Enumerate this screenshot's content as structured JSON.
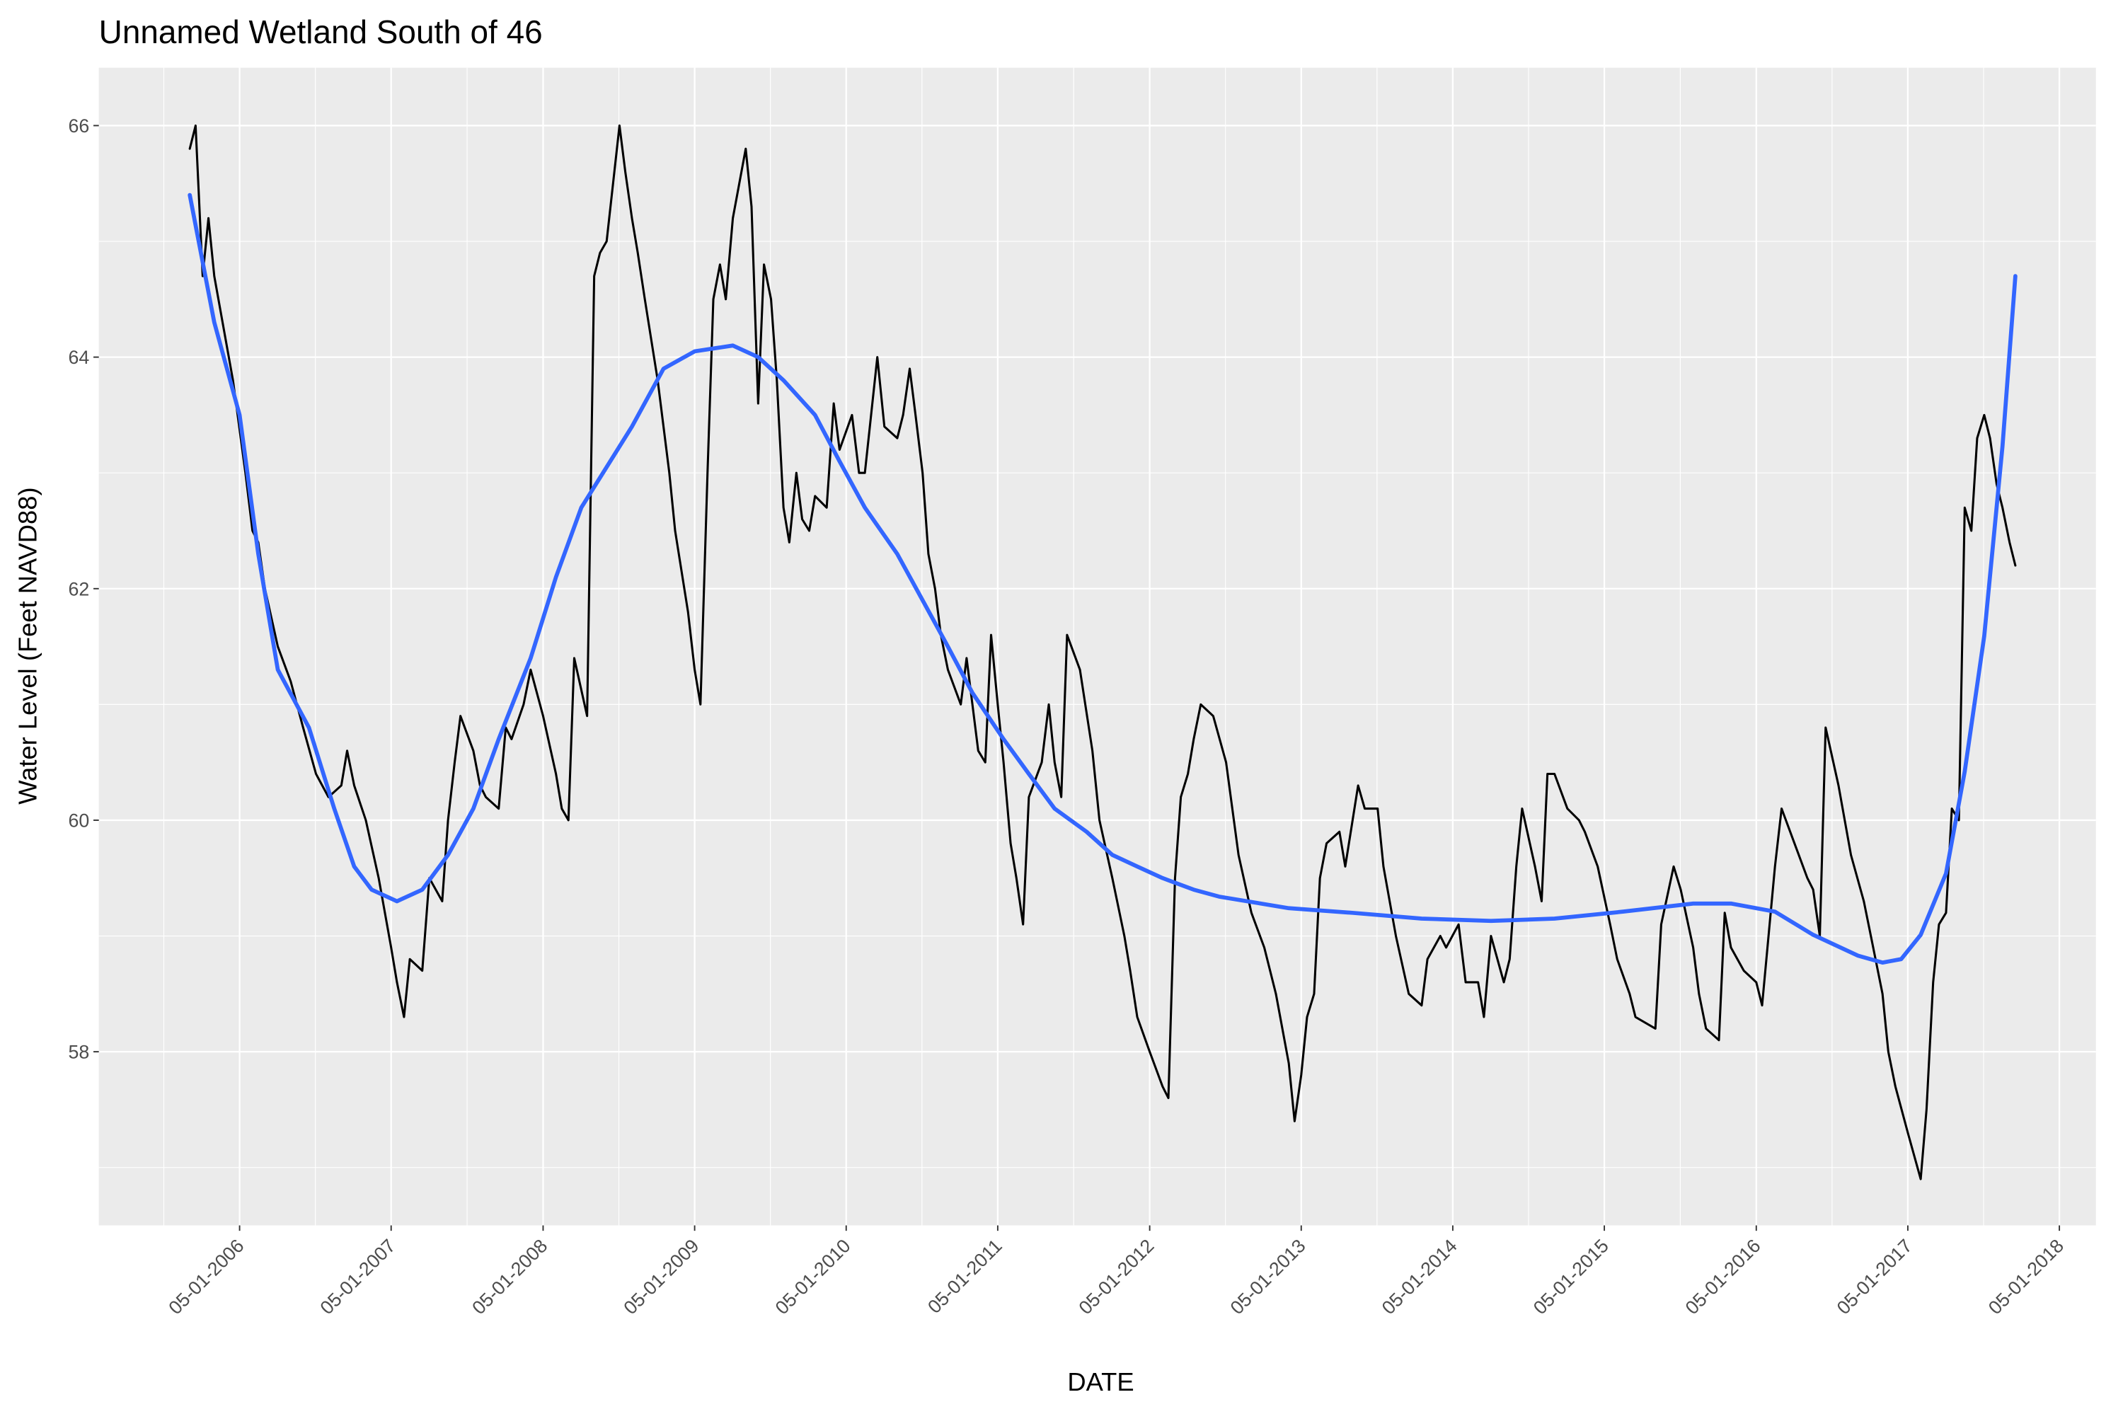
{
  "chart_data": {
    "type": "line",
    "title": "Unnamed Wetland South of 46",
    "x_label": "DATE",
    "y_label": "Water Level (Feet NAVD88)",
    "xlim": [
      "05-27-2005",
      "07-28-2018"
    ],
    "ylim": [
      56.5,
      66.5
    ],
    "xticks": [
      "05-01-2006",
      "05-01-2007",
      "05-01-2008",
      "05-01-2009",
      "05-01-2010",
      "05-01-2011",
      "05-01-2012",
      "05-01-2013",
      "05-01-2014",
      "05-01-2015",
      "05-01-2016",
      "05-01-2017",
      "05-01-2018"
    ],
    "yticks": [
      58,
      60,
      62,
      64,
      66
    ],
    "grid": true,
    "series": [
      {
        "color": "#000000",
        "x": [
          "01-01-2006",
          "01-15-2006",
          "02-01-2006",
          "02-15-2006",
          "03-01-2006",
          "04-15-2006",
          "05-15-2006",
          "06-01-2006",
          "06-15-2006",
          "07-01-2006",
          "08-01-2006",
          "09-01-2006",
          "10-01-2006",
          "11-01-2006",
          "12-01-2006",
          "01-01-2007",
          "01-15-2007",
          "02-01-2007",
          "03-01-2007",
          "04-01-2007",
          "05-01-2007",
          "05-15-2007",
          "06-01-2007",
          "06-15-2007",
          "07-15-2007",
          "08-01-2007",
          "09-01-2007",
          "09-15-2007",
          "10-01-2007",
          "10-15-2007",
          "11-15-2007",
          "12-01-2007",
          "12-15-2007",
          "01-15-2008",
          "02-01-2008",
          "02-15-2008",
          "03-15-2008",
          "04-01-2008",
          "05-01-2008",
          "06-01-2008",
          "06-15-2008",
          "07-01-2008",
          "07-15-2008",
          "08-15-2008",
          "09-01-2008",
          "09-15-2008",
          "10-01-2008",
          "11-01-2008",
          "11-15-2008",
          "12-01-2008",
          "12-15-2008",
          "01-01-2009",
          "02-01-2009",
          "03-01-2009",
          "03-15-2009",
          "04-15-2009",
          "05-01-2009",
          "05-15-2009",
          "06-01-2009",
          "06-15-2009",
          "07-01-2009",
          "07-15-2009",
          "08-01-2009",
          "09-01-2009",
          "09-15-2009",
          "10-01-2009",
          "10-15-2009",
          "11-01-2009",
          "11-15-2009",
          "12-01-2009",
          "12-15-2009",
          "01-01-2010",
          "01-15-2010",
          "02-01-2010",
          "02-15-2010",
          "03-15-2010",
          "04-01-2010",
          "04-15-2010",
          "05-15-2010",
          "06-01-2010",
          "06-15-2010",
          "07-15-2010",
          "08-01-2010",
          "09-01-2010",
          "09-15-2010",
          "10-01-2010",
          "10-15-2010",
          "11-01-2010",
          "11-15-2010",
          "12-01-2010",
          "12-15-2010",
          "01-01-2011",
          "02-01-2011",
          "02-15-2011",
          "03-01-2011",
          "03-15-2011",
          "04-01-2011",
          "04-15-2011",
          "05-01-2011",
          "05-15-2011",
          "06-01-2011",
          "06-15-2011",
          "07-01-2011",
          "07-15-2011",
          "08-15-2011",
          "09-01-2011",
          "09-15-2011",
          "10-01-2011",
          "10-15-2011",
          "11-15-2011",
          "12-15-2011",
          "01-01-2012",
          "02-01-2012",
          "03-01-2012",
          "03-15-2012",
          "04-01-2012",
          "05-01-2012",
          "06-01-2012",
          "06-15-2012",
          "07-01-2012",
          "07-15-2012",
          "08-01-2012",
          "08-15-2012",
          "09-01-2012",
          "10-01-2012",
          "11-01-2012",
          "12-01-2012",
          "01-01-2013",
          "02-01-2013",
          "03-01-2013",
          "04-01-2013",
          "04-15-2013",
          "05-01-2013",
          "05-15-2013",
          "06-01-2013",
          "06-15-2013",
          "07-01-2013",
          "08-01-2013",
          "08-15-2013",
          "09-15-2013",
          "10-01-2013",
          "11-01-2013",
          "11-15-2013",
          "12-15-2013",
          "01-15-2014",
          "02-15-2014",
          "03-01-2014",
          "04-01-2014",
          "04-15-2014",
          "05-15-2014",
          "06-01-2014",
          "07-01-2014",
          "07-15-2014",
          "08-01-2014",
          "09-01-2014",
          "09-15-2014",
          "10-01-2014",
          "10-15-2014",
          "11-15-2014",
          "12-01-2014",
          "12-15-2014",
          "01-01-2015",
          "02-01-2015",
          "03-01-2015",
          "03-15-2015",
          "04-15-2015",
          "05-15-2015",
          "06-01-2015",
          "07-01-2015",
          "07-15-2015",
          "09-01-2015",
          "09-15-2015",
          "10-15-2015",
          "11-01-2015",
          "12-01-2015",
          "12-15-2015",
          "01-01-2016",
          "02-01-2016",
          "02-15-2016",
          "03-01-2016",
          "04-01-2016",
          "05-01-2016",
          "05-15-2016",
          "06-15-2016",
          "07-01-2016",
          "08-01-2016",
          "09-01-2016",
          "09-15-2016",
          "10-01-2016",
          "10-15-2016",
          "11-15-2016",
          "12-15-2016",
          "01-15-2017",
          "02-01-2017",
          "03-01-2017",
          "03-15-2017",
          "04-01-2017",
          "05-01-2017",
          "06-01-2017",
          "06-15-2017",
          "07-01-2017",
          "07-15-2017",
          "08-01-2017",
          "08-15-2017",
          "09-01-2017",
          "09-15-2017",
          "10-01-2017",
          "10-15-2017",
          "11-01-2017",
          "11-15-2017",
          "12-01-2017",
          "12-15-2017",
          "01-01-2018",
          "01-15-2018"
        ],
        "values": [
          65.8,
          66.0,
          64.7,
          65.2,
          64.7,
          63.8,
          63.0,
          62.5,
          62.4,
          62.0,
          61.5,
          61.2,
          60.8,
          60.4,
          60.2,
          60.3,
          60.6,
          60.3,
          60.0,
          59.5,
          58.9,
          58.6,
          58.3,
          58.8,
          58.7,
          59.5,
          59.3,
          60.0,
          60.5,
          60.9,
          60.6,
          60.3,
          60.2,
          60.1,
          60.8,
          60.7,
          61.0,
          61.3,
          60.9,
          60.4,
          60.1,
          60.0,
          61.4,
          60.9,
          64.7,
          64.9,
          65.0,
          66.0,
          65.6,
          65.2,
          64.9,
          64.5,
          63.8,
          63.0,
          62.5,
          61.8,
          61.3,
          61.0,
          63.0,
          64.5,
          64.8,
          64.5,
          65.2,
          65.8,
          65.3,
          63.6,
          64.8,
          64.5,
          63.8,
          62.7,
          62.4,
          63.0,
          62.6,
          62.5,
          62.8,
          62.7,
          63.6,
          63.2,
          63.5,
          63.0,
          63.0,
          64.0,
          63.4,
          63.3,
          63.5,
          63.9,
          63.5,
          63.0,
          62.3,
          62.0,
          61.6,
          61.3,
          61.0,
          61.4,
          61.0,
          60.6,
          60.5,
          61.6,
          61.0,
          60.5,
          59.8,
          59.5,
          59.1,
          60.2,
          60.5,
          61.0,
          60.5,
          60.2,
          61.6,
          61.3,
          60.6,
          60.0,
          59.5,
          59.0,
          58.7,
          58.3,
          58.0,
          57.7,
          57.6,
          59.5,
          60.2,
          60.4,
          60.7,
          61.0,
          60.9,
          60.5,
          59.7,
          59.2,
          58.9,
          58.5,
          57.9,
          57.4,
          57.8,
          58.3,
          58.5,
          59.5,
          59.8,
          59.9,
          59.6,
          60.3,
          60.1,
          60.1,
          59.6,
          59.0,
          58.5,
          58.4,
          58.8,
          59.0,
          58.9,
          59.1,
          58.6,
          58.6,
          58.3,
          59.0,
          58.6,
          58.8,
          59.6,
          60.1,
          59.6,
          59.3,
          60.4,
          60.4,
          60.1,
          60.0,
          59.9,
          59.6,
          59.1,
          58.8,
          58.5,
          58.3,
          58.2,
          59.1,
          59.6,
          59.4,
          58.9,
          58.5,
          58.2,
          58.1,
          59.2,
          58.9,
          58.7,
          58.6,
          58.4,
          59.6,
          60.1,
          59.8,
          59.5,
          59.4,
          59.0,
          60.8,
          60.3,
          59.7,
          59.3,
          59.0,
          58.5,
          58.0,
          57.7,
          57.3,
          56.9,
          57.5,
          58.6,
          59.1,
          59.2,
          60.1,
          60.0,
          62.7,
          62.5,
          63.3,
          63.5,
          63.3,
          62.9,
          62.7,
          62.4,
          62.2
        ]
      },
      {
        "color": "#3366ff",
        "x": [
          "01-01-2006",
          "03-01-2006",
          "05-01-2006",
          "06-15-2006",
          "08-01-2006",
          "10-15-2006",
          "12-15-2006",
          "02-01-2007",
          "03-15-2007",
          "05-15-2007",
          "07-15-2007",
          "09-15-2007",
          "11-15-2007",
          "01-15-2008",
          "04-01-2008",
          "06-01-2008",
          "08-01-2008",
          "12-01-2008",
          "02-15-2009",
          "05-01-2009",
          "08-01-2009",
          "10-01-2009",
          "12-01-2009",
          "02-15-2010",
          "04-15-2010",
          "06-15-2010",
          "09-01-2010",
          "11-01-2010",
          "01-01-2011",
          "03-01-2011",
          "05-15-2011",
          "07-15-2011",
          "09-15-2011",
          "12-01-2011",
          "02-01-2012",
          "04-01-2012",
          "06-01-2012",
          "08-15-2012",
          "10-15-2012",
          "04-01-2013",
          "09-01-2013",
          "02-15-2014",
          "08-01-2014",
          "01-01-2015",
          "06-15-2015",
          "12-01-2015",
          "03-01-2016",
          "06-15-2016",
          "09-15-2016",
          "01-01-2017",
          "03-01-2017",
          "04-15-2017",
          "06-01-2017",
          "08-01-2017",
          "09-15-2017",
          "11-01-2017",
          "12-15-2017",
          "01-15-2018"
        ],
        "values": [
          65.4,
          64.3,
          63.5,
          62.3,
          61.3,
          60.8,
          60.1,
          59.6,
          59.4,
          59.3,
          59.4,
          59.7,
          60.1,
          60.7,
          61.4,
          62.1,
          62.7,
          63.4,
          63.9,
          64.05,
          64.1,
          64.0,
          63.8,
          63.5,
          63.1,
          62.7,
          62.3,
          61.9,
          61.5,
          61.1,
          60.7,
          60.4,
          60.1,
          59.9,
          59.7,
          59.6,
          59.5,
          59.4,
          59.34,
          59.24,
          59.2,
          59.15,
          59.13,
          59.15,
          59.21,
          59.28,
          59.28,
          59.21,
          59.01,
          58.83,
          58.77,
          58.8,
          59.01,
          59.54,
          60.42,
          61.59,
          63.23,
          64.7
        ]
      }
    ]
  }
}
